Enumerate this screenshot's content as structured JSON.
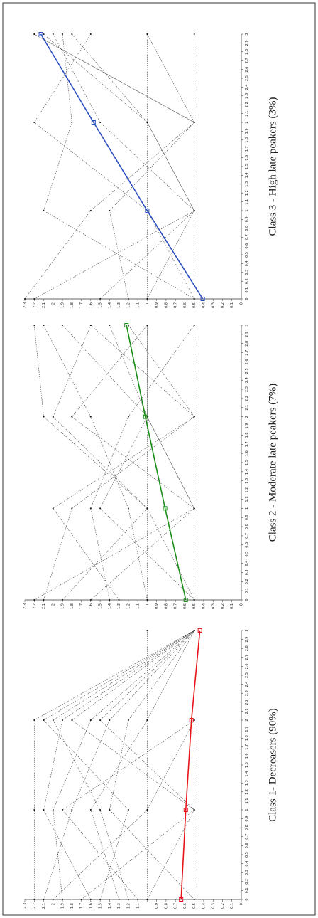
{
  "chart_data": [
    {
      "type": "line",
      "title": "Class 1- Decreasers (90%)",
      "x": [
        0,
        1,
        2,
        3
      ],
      "values": [
        0.64,
        0.59,
        0.53,
        0.44
      ],
      "color": "#e8141a",
      "trajectories": [
        [
          2.2,
          2.2,
          2.2,
          0.5
        ],
        [
          2.1,
          1.8,
          1.4,
          0.5
        ],
        [
          1.9,
          2.0,
          1.6,
          0.5
        ],
        [
          1.7,
          0.5,
          1.5,
          0.5
        ],
        [
          1.5,
          1.2,
          2.1,
          0.5
        ],
        [
          1.3,
          1.6,
          1.0,
          0.5
        ],
        [
          1.1,
          1.9,
          0.5,
          0.5
        ],
        [
          1.0,
          0.5,
          1.8,
          0.5
        ],
        [
          0.5,
          1.4,
          1.2,
          0.5
        ],
        [
          2.0,
          1.0,
          0.5,
          0.5
        ],
        [
          0.5,
          0.5,
          0.5,
          0.5
        ],
        [
          1.0,
          1.0,
          1.0,
          1.0
        ],
        [
          1.6,
          2.1,
          1.9,
          0.5
        ],
        [
          1.2,
          1.5,
          2.0,
          0.5
        ]
      ],
      "xlim": [
        0,
        3
      ],
      "xticks": [
        0,
        0.1,
        0.2,
        0.3,
        0.4,
        0.5,
        0.6,
        0.7,
        0.8,
        0.9,
        1,
        1.1,
        1.2,
        1.3,
        1.4,
        1.5,
        1.6,
        1.7,
        1.8,
        1.9,
        2,
        2.1,
        2.2,
        2.3,
        2.4,
        2.5,
        2.6,
        2.7,
        2.8,
        2.9,
        3
      ],
      "ylim": [
        0,
        2.3
      ],
      "yticks": [
        0,
        0.1,
        0.2,
        0.3,
        0.4,
        0.5,
        0.6,
        0.7,
        0.8,
        0.9,
        1,
        1.1,
        1.2,
        1.3,
        1.4,
        1.5,
        1.6,
        1.7,
        1.8,
        1.9,
        2,
        2.1,
        2.2,
        2.3
      ]
    },
    {
      "type": "line",
      "title": "Class 2 - Moderate late peakers (7%)",
      "x": [
        0,
        1,
        2,
        3
      ],
      "values": [
        0.59,
        0.81,
        1.02,
        1.22
      ],
      "color": "#1a8c1a",
      "trajectories": [
        [
          2.2,
          0.5,
          1.0,
          1.9
        ],
        [
          2.1,
          1.8,
          0.5,
          1.6
        ],
        [
          1.9,
          1.0,
          2.1,
          2.2
        ],
        [
          0.5,
          1.5,
          1.0,
          1.4
        ],
        [
          1.6,
          0.5,
          1.8,
          1.0
        ],
        [
          1.3,
          2.0,
          0.5,
          1.2
        ],
        [
          1.0,
          1.2,
          1.6,
          2.1
        ],
        [
          0.5,
          0.5,
          1.0,
          1.0
        ],
        [
          0.5,
          1.0,
          2.0,
          1.6
        ],
        [
          1.4,
          1.6,
          1.2,
          0.5
        ],
        [
          1.0,
          1.0,
          1.0,
          1.0
        ],
        [
          0.5,
          0.5,
          0.5,
          0.5
        ]
      ],
      "xlim": [
        0,
        3
      ],
      "xticks": [
        0,
        0.1,
        0.2,
        0.3,
        0.4,
        0.5,
        0.6,
        0.7,
        0.8,
        0.9,
        1,
        1.1,
        1.2,
        1.3,
        1.4,
        1.5,
        1.6,
        1.7,
        1.8,
        1.9,
        2,
        2.1,
        2.2,
        2.3,
        2.4,
        2.5,
        2.6,
        2.7,
        2.8,
        2.9,
        3
      ],
      "ylim": [
        0,
        2.3
      ],
      "yticks": [
        0,
        0.1,
        0.2,
        0.3,
        0.4,
        0.5,
        0.6,
        0.7,
        0.8,
        0.9,
        1,
        1.1,
        1.2,
        1.3,
        1.4,
        1.5,
        1.6,
        1.7,
        1.8,
        1.9,
        2,
        2.1,
        2.2,
        2.3
      ]
    },
    {
      "type": "line",
      "title": "Class 3 - High late peakers (3%)",
      "x": [
        0,
        1,
        2,
        3
      ],
      "values": [
        0.41,
        1.0,
        1.57,
        2.13
      ],
      "color": "#2a4dbf",
      "trajectories": [
        [
          2.3,
          1.6,
          0.5,
          2.2
        ],
        [
          2.2,
          0.5,
          1.0,
          2.1
        ],
        [
          0.5,
          2.1,
          1.8,
          1.9
        ],
        [
          1.5,
          0.5,
          0.5,
          2.2
        ],
        [
          0.5,
          1.0,
          2.2,
          1.6
        ],
        [
          1.2,
          1.4,
          0.5,
          1.0
        ],
        [
          1.0,
          0.5,
          1.5,
          2.0
        ],
        [
          0.5,
          0.5,
          1.0,
          1.8
        ],
        [
          1.0,
          1.0,
          1.0,
          1.0
        ],
        [
          0.5,
          0.5,
          0.5,
          0.5
        ]
      ],
      "xlim": [
        0,
        3
      ],
      "xticks": [
        0,
        0.1,
        0.2,
        0.3,
        0.4,
        0.5,
        0.6,
        0.7,
        0.8,
        0.9,
        1,
        1.1,
        1.2,
        1.3,
        1.4,
        1.5,
        1.6,
        1.7,
        1.8,
        1.9,
        2,
        2.1,
        2.2,
        2.3,
        2.4,
        2.5,
        2.6,
        2.7,
        2.8,
        2.9,
        3
      ],
      "ylim": [
        0,
        2.3
      ],
      "yticks": [
        0,
        0.1,
        0.2,
        0.3,
        0.4,
        0.5,
        0.6,
        0.7,
        0.8,
        0.9,
        1,
        1.1,
        1.2,
        1.3,
        1.4,
        1.5,
        1.6,
        1.7,
        1.8,
        1.9,
        2,
        2.1,
        2.2,
        2.3
      ]
    }
  ]
}
